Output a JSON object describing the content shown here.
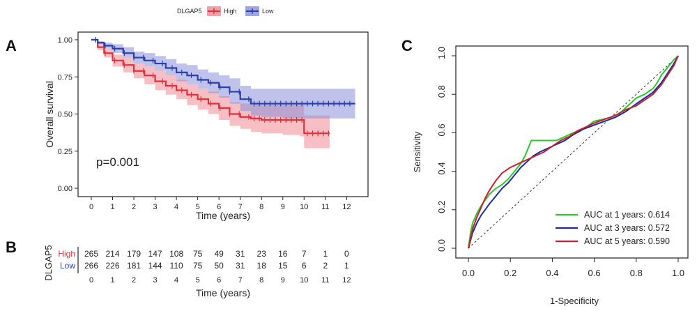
{
  "panels": {
    "a": "A",
    "b": "B",
    "c": "C"
  },
  "colors": {
    "high": "#e0303c",
    "low": "#2a3fa8",
    "high_band": "#f08a92",
    "low_band": "#8a90d8",
    "roc_1y": "#2ec82e",
    "roc_3y": "#1c2ca0",
    "roc_5y": "#c8202a"
  },
  "chart_data": [
    {
      "type": "line",
      "chart": "kaplan-meier",
      "legend": {
        "title": "DLGAP5",
        "entries": [
          "High",
          "Low"
        ],
        "placement": "top"
      },
      "xlabel": "Time (years)",
      "ylabel": "Overall survival",
      "xlim": [
        0,
        12.5
      ],
      "ylim": [
        0,
        1
      ],
      "xticks": [
        "0",
        "1",
        "2",
        "3",
        "4",
        "5",
        "6",
        "7",
        "8",
        "9",
        "10",
        "11",
        "12"
      ],
      "yticks": [
        "0.00",
        "0.25",
        "0.50",
        "0.75",
        "1.00"
      ],
      "annotation": "p=0.001",
      "series": [
        {
          "name": "High",
          "x": [
            0,
            0.3,
            0.6,
            1.0,
            1.5,
            2.0,
            2.5,
            3.0,
            3.5,
            4.0,
            4.5,
            5.0,
            5.5,
            6.0,
            6.5,
            7.0,
            7.5,
            8.0,
            9.0,
            9.8,
            10.0,
            11.2
          ],
          "y": [
            1.0,
            0.95,
            0.91,
            0.86,
            0.83,
            0.79,
            0.76,
            0.72,
            0.69,
            0.66,
            0.63,
            0.6,
            0.57,
            0.54,
            0.5,
            0.48,
            0.47,
            0.46,
            0.46,
            0.46,
            0.37,
            0.37
          ],
          "lower": [
            1.0,
            0.93,
            0.88,
            0.82,
            0.78,
            0.74,
            0.7,
            0.66,
            0.63,
            0.6,
            0.56,
            0.53,
            0.5,
            0.46,
            0.42,
            0.4,
            0.38,
            0.37,
            0.36,
            0.35,
            0.27,
            0.27
          ],
          "upper": [
            1.0,
            0.97,
            0.94,
            0.9,
            0.88,
            0.84,
            0.82,
            0.79,
            0.76,
            0.73,
            0.7,
            0.67,
            0.65,
            0.62,
            0.58,
            0.57,
            0.56,
            0.56,
            0.56,
            0.56,
            0.49,
            0.49
          ]
        },
        {
          "name": "Low",
          "x": [
            0,
            0.3,
            0.6,
            1.0,
            1.5,
            2.0,
            2.5,
            3.0,
            3.5,
            4.0,
            4.5,
            5.0,
            5.5,
            6.0,
            6.5,
            7.0,
            7.5,
            8.0,
            9.0,
            10.0,
            11.0,
            12.4
          ],
          "y": [
            1.0,
            0.98,
            0.96,
            0.94,
            0.91,
            0.88,
            0.86,
            0.84,
            0.81,
            0.78,
            0.76,
            0.73,
            0.71,
            0.68,
            0.65,
            0.6,
            0.57,
            0.57,
            0.57,
            0.57,
            0.57,
            0.57
          ],
          "lower": [
            1.0,
            0.97,
            0.94,
            0.91,
            0.88,
            0.84,
            0.82,
            0.79,
            0.76,
            0.72,
            0.7,
            0.67,
            0.64,
            0.61,
            0.57,
            0.52,
            0.49,
            0.48,
            0.47,
            0.47,
            0.47,
            0.47
          ],
          "upper": [
            1.0,
            0.99,
            0.98,
            0.97,
            0.95,
            0.92,
            0.91,
            0.89,
            0.87,
            0.84,
            0.83,
            0.8,
            0.78,
            0.76,
            0.74,
            0.69,
            0.67,
            0.67,
            0.67,
            0.67,
            0.67,
            0.67
          ]
        }
      ]
    },
    {
      "type": "table",
      "chart": "number-at-risk",
      "ylabel": "DLGAP5",
      "xlabel": "Time (years)",
      "columns": [
        "0",
        "1",
        "2",
        "3",
        "4",
        "5",
        "6",
        "7",
        "8",
        "9",
        "10",
        "11",
        "12"
      ],
      "rows": [
        {
          "name": "High",
          "values": [
            "265",
            "214",
            "179",
            "147",
            "108",
            "75",
            "49",
            "31",
            "23",
            "16",
            "7",
            "1",
            "0"
          ]
        },
        {
          "name": "Low",
          "values": [
            "266",
            "226",
            "181",
            "144",
            "110",
            "75",
            "50",
            "31",
            "18",
            "15",
            "6",
            "2",
            "1"
          ]
        }
      ]
    },
    {
      "type": "line",
      "chart": "roc",
      "xlabel": "1-Specificity",
      "ylabel": "Sensitivity",
      "xlim": [
        0,
        1
      ],
      "ylim": [
        0,
        1
      ],
      "xticks": [
        "0.0",
        "0.2",
        "0.4",
        "0.6",
        "0.8",
        "1.0"
      ],
      "yticks": [
        "0.0",
        "0.2",
        "0.4",
        "0.6",
        "0.8",
        "1.0"
      ],
      "legend": {
        "placement": "bottom-right"
      },
      "series": [
        {
          "name": "AUC at 1 years: 0.614",
          "x": [
            0,
            0.01,
            0.02,
            0.04,
            0.06,
            0.08,
            0.1,
            0.13,
            0.16,
            0.19,
            0.22,
            0.25,
            0.27,
            0.3,
            0.34,
            0.38,
            0.42,
            0.46,
            0.5,
            0.55,
            0.6,
            0.64,
            0.68,
            0.72,
            0.76,
            0.8,
            0.84,
            0.88,
            0.9,
            0.92,
            0.95,
            0.98,
            1.0
          ],
          "y": [
            0,
            0.08,
            0.13,
            0.18,
            0.22,
            0.25,
            0.28,
            0.31,
            0.33,
            0.36,
            0.4,
            0.44,
            0.48,
            0.56,
            0.56,
            0.56,
            0.56,
            0.58,
            0.6,
            0.62,
            0.66,
            0.67,
            0.68,
            0.7,
            0.74,
            0.78,
            0.8,
            0.83,
            0.86,
            0.9,
            0.94,
            0.98,
            1.0
          ]
        },
        {
          "name": "AUC at 3 years: 0.572",
          "x": [
            0,
            0.02,
            0.04,
            0.06,
            0.08,
            0.1,
            0.13,
            0.16,
            0.19,
            0.22,
            0.25,
            0.28,
            0.31,
            0.34,
            0.38,
            0.42,
            0.46,
            0.5,
            0.55,
            0.6,
            0.65,
            0.7,
            0.75,
            0.8,
            0.84,
            0.88,
            0.92,
            0.95,
            0.98,
            1.0
          ],
          "y": [
            0,
            0.08,
            0.13,
            0.17,
            0.2,
            0.23,
            0.27,
            0.31,
            0.34,
            0.38,
            0.42,
            0.45,
            0.48,
            0.5,
            0.52,
            0.54,
            0.56,
            0.59,
            0.62,
            0.64,
            0.66,
            0.68,
            0.71,
            0.75,
            0.78,
            0.81,
            0.86,
            0.91,
            0.96,
            1.0
          ]
        },
        {
          "name": "AUC at 5 years: 0.590",
          "x": [
            0,
            0.02,
            0.04,
            0.06,
            0.08,
            0.1,
            0.13,
            0.16,
            0.2,
            0.24,
            0.28,
            0.32,
            0.36,
            0.4,
            0.44,
            0.48,
            0.52,
            0.56,
            0.6,
            0.65,
            0.7,
            0.75,
            0.8,
            0.84,
            0.88,
            0.92,
            0.95,
            0.98,
            1.0
          ],
          "y": [
            0,
            0.1,
            0.16,
            0.21,
            0.26,
            0.3,
            0.35,
            0.39,
            0.42,
            0.44,
            0.46,
            0.48,
            0.5,
            0.53,
            0.56,
            0.58,
            0.61,
            0.63,
            0.65,
            0.67,
            0.69,
            0.72,
            0.74,
            0.77,
            0.8,
            0.85,
            0.9,
            0.95,
            1.0
          ]
        }
      ]
    }
  ]
}
